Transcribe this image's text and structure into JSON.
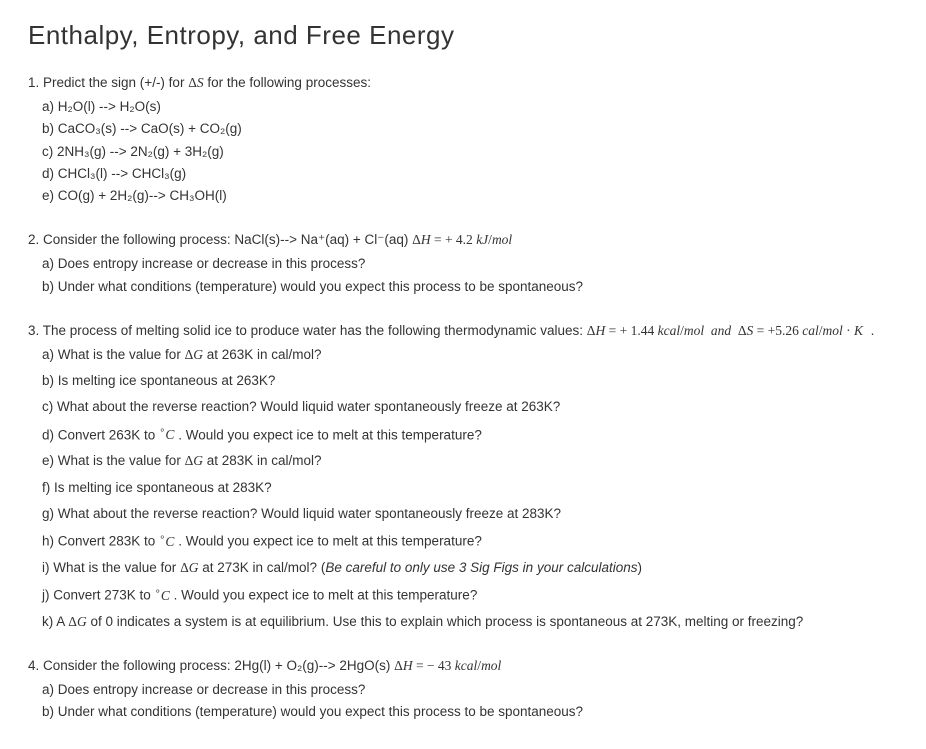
{
  "title": "Enthalpy, Entropy, and Free Energy",
  "q1": {
    "prompt_pre": "1. Predict the sign (+/-) for ",
    "prompt_sym": "ΔS",
    "prompt_post": " for the following processes:",
    "a": "a) H₂O(l) --> H₂O(s)",
    "b": "b) CaCO₃(s) --> CaO(s) + CO₂(g)",
    "c": "c) 2NH₃(g) --> 2N₂(g) + 3H₂(g)",
    "d": "d) CHCl₃(l) --> CHCl₃(g)",
    "e": "e) CO(g) + 2H₂(g)--> CH₃OH(l)"
  },
  "q2": {
    "prompt_pre": "2. Consider the following process: NaCl(s)--> Na⁺(aq) + Cl⁻(aq)   ",
    "dh": "ΔH = + 4.2 kJ/mol",
    "a": "a) Does entropy increase or decrease in this process?",
    "b": "b) Under what conditions (temperature) would you expect this process to be spontaneous?"
  },
  "q3": {
    "prompt_pre": "3. The process of melting solid ice to produce water has the following thermodynamic values:   ",
    "dh": "ΔH = + 1.44 kcal/mol  and  ΔS = +5.26 cal/mol · K  .",
    "a_pre": "a) What is the value for   ",
    "a_sym": "ΔG",
    "a_post": "   at 263K in cal/mol?",
    "b": "b) Is melting ice spontaneous at 263K?",
    "c": "c) What about the reverse reaction? Would liquid water spontaneously freeze at 263K?",
    "d_pre": "d) Convert 263K to   ",
    "d_sym": "°C",
    "d_post": "  . Would you expect ice to melt at this temperature?",
    "e_pre": "e) What is the value for   ",
    "e_sym": "ΔG",
    "e_post": "   at 283K in cal/mol?",
    "f": "f) Is melting ice spontaneous at 283K?",
    "g": "g) What about the reverse reaction? Would liquid water spontaneously freeze at 283K?",
    "h_pre": "h) Convert 283K to   ",
    "h_sym": "°C",
    "h_post": "  . Would you expect ice to melt at this temperature?",
    "i_pre": "i) What is the value for   ",
    "i_sym": "ΔG",
    "i_post": "   at 273K in cal/mol? (",
    "i_ital": "Be careful to only use 3 Sig Figs in your calculations",
    "i_end": ")",
    "j_pre": "j) Convert 273K to   ",
    "j_sym": "°C",
    "j_post": "  . Would you expect ice to melt at this temperature?",
    "k_pre": "k) A   ",
    "k_sym": "ΔG",
    "k_post": "   of 0 indicates a system is at equilibrium. Use this to explain which process is spontaneous at 273K, melting or freezing?"
  },
  "q4": {
    "prompt_pre": "4. Consider the following process: 2Hg(l) + O₂(g)--> 2HgO(s)   ",
    "dh": "ΔH = − 43 kcal/mol",
    "a": "a) Does entropy increase or decrease in this process?",
    "b": "b) Under what conditions (temperature) would you expect this process to be spontaneous?"
  }
}
